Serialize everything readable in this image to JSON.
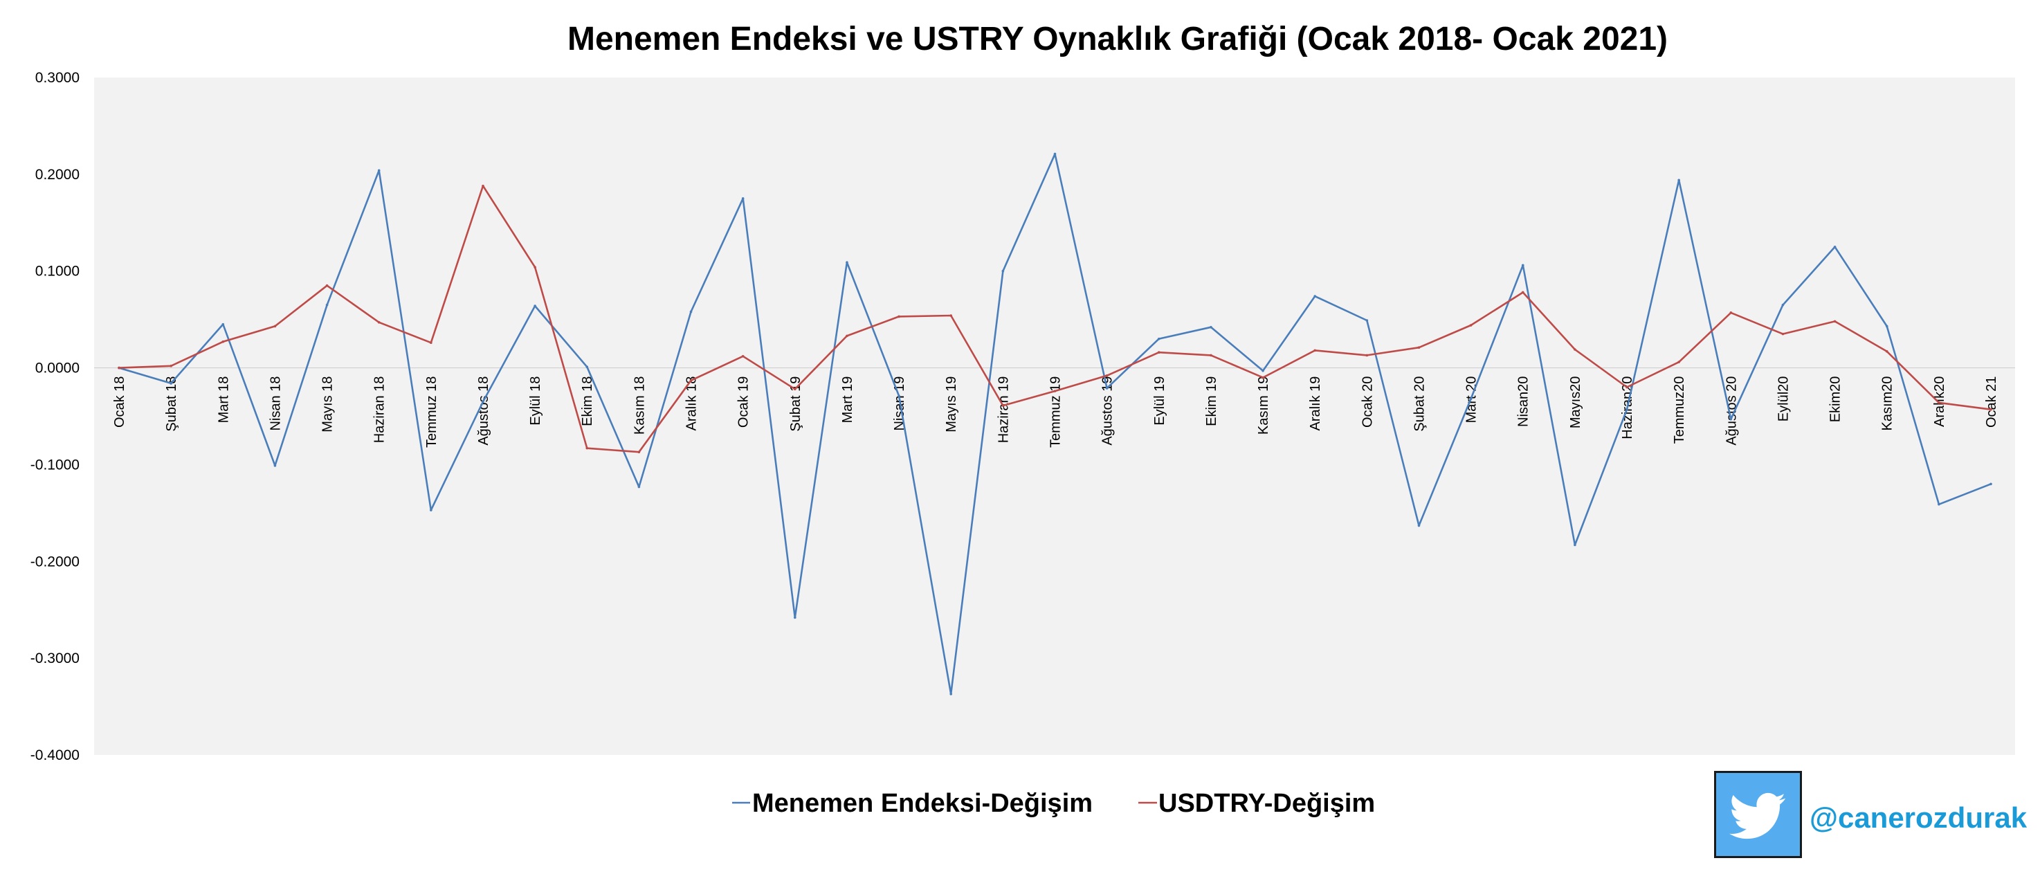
{
  "chart_data": {
    "type": "line",
    "title": "Menemen Endeksi ve USTRY Oynaklık Grafiği (Ocak 2018- Ocak 2021)",
    "xlabel": "",
    "ylabel": "",
    "ylim": [
      -0.4,
      0.3
    ],
    "yticks": [
      "0.3000",
      "0.2000",
      "0.1000",
      "0.0000",
      "-0.1000",
      "-0.2000",
      "-0.3000",
      "-0.4000"
    ],
    "grid": false,
    "legend": "bottom-center",
    "categories": [
      "Ocak 18",
      "Şubat 18",
      "Mart 18",
      "Nisan 18",
      "Mayıs 18",
      "Haziran 18",
      "Temmuz 18",
      "Ağustos 18",
      "Eylül 18",
      "Ekim 18",
      "Kasım 18",
      "Aralık 18",
      "Ocak 19",
      "Şubat 19",
      "Mart 19",
      "Nisan 19",
      "Mayıs 19",
      "Haziran 19",
      "Temmuz 19",
      "Ağustos 19",
      "Eylül 19",
      "Ekim 19",
      "Kasım 19",
      "Aralık 19",
      "Ocak 20",
      "Şubat 20",
      "Mart 20",
      "Nisan20",
      "Mayıs20",
      "Haziran20",
      "Temmuz20",
      "Ağustos 20",
      "Eylül20",
      "Ekim20",
      "Kasım20",
      "Aralık20",
      "Ocak 21"
    ],
    "series": [
      {
        "name": "Menemen Endeksi-Değişim",
        "color": "#4a7ebb",
        "values": [
          0.0,
          -0.016,
          0.045,
          -0.101,
          0.065,
          0.204,
          -0.147,
          -0.035,
          0.064,
          0.001,
          -0.123,
          0.058,
          0.175,
          -0.258,
          0.109,
          -0.029,
          -0.337,
          0.1,
          0.221,
          -0.021,
          0.03,
          0.042,
          -0.003,
          0.074,
          0.049,
          -0.163,
          -0.032,
          0.106,
          -0.183,
          -0.043,
          0.194,
          -0.053,
          0.065,
          0.125,
          0.043,
          -0.141,
          -0.12
        ]
      },
      {
        "name": "USDTRY-Değişim",
        "color": "#be4b48",
        "values": [
          0.0,
          0.002,
          0.027,
          0.043,
          0.085,
          0.047,
          0.026,
          0.188,
          0.104,
          -0.083,
          -0.087,
          -0.013,
          0.012,
          -0.022,
          0.033,
          0.053,
          0.054,
          -0.039,
          -0.024,
          -0.008,
          0.016,
          0.013,
          -0.01,
          0.018,
          0.013,
          0.021,
          0.044,
          0.078,
          0.019,
          -0.02,
          0.006,
          0.057,
          0.035,
          0.048,
          0.017,
          -0.036,
          -0.043
        ]
      }
    ]
  },
  "watermark": {
    "handle": "@canerozdurak",
    "icon": "twitter-bird-icon",
    "badge_color": "#55acee",
    "text_color": "#1a9bd7"
  }
}
